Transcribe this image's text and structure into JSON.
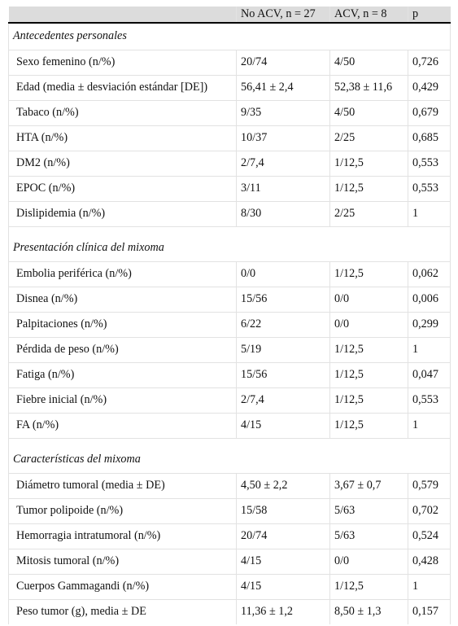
{
  "header": [
    "",
    "No ACV, n = 27",
    "ACV, n = 8",
    "p"
  ],
  "sections": [
    {
      "title": "Antecedentes personales",
      "rows": [
        [
          "Sexo femenino (n/%)",
          "20/74",
          "4/50",
          "0,726"
        ],
        [
          "Edad (media ± desviación estándar [DE])",
          "56,41 ± 2,4",
          "52,38 ± 11,6",
          "0,429"
        ],
        [
          "Tabaco (n/%)",
          "9/35",
          "4/50",
          "0,679"
        ],
        [
          "HTA (n/%)",
          "10/37",
          "2/25",
          "0,685"
        ],
        [
          "DM2 (n/%)",
          "2/7,4",
          "1/12,5",
          "0,553"
        ],
        [
          "EPOC (n/%)",
          "3/11",
          "1/12,5",
          "0,553"
        ],
        [
          "Dislipidemia (n/%)",
          "8/30",
          "2/25",
          "1"
        ]
      ]
    },
    {
      "title": "Presentación clínica del mixoma",
      "rows": [
        [
          "Embolia periférica (n/%)",
          "0/0",
          "1/12,5",
          "0,062"
        ],
        [
          "Disnea (n/%)",
          "15/56",
          "0/0",
          "0,006"
        ],
        [
          "Palpitaciones (n/%)",
          "6/22",
          "0/0",
          "0,299"
        ],
        [
          "Pérdida de peso (n/%)",
          "5/19",
          "1/12,5",
          "1"
        ],
        [
          "Fatiga (n/%)",
          "15/56",
          "1/12,5",
          "0,047"
        ],
        [
          "Fiebre inicial (n/%)",
          "2/7,4",
          "1/12,5",
          "0,553"
        ],
        [
          "FA (n/%)",
          "4/15",
          "1/12,5",
          "1"
        ]
      ]
    },
    {
      "title": "Características del mixoma",
      "rows": [
        [
          "Diámetro tumoral (media ± DE)",
          "4,50 ± 2,2",
          "3,67 ± 0,7",
          "0,579"
        ],
        [
          "Tumor polipoide (n/%)",
          "15/58",
          "5/63",
          "0,702"
        ],
        [
          "Hemorragia intratumoral (n/%)",
          "20/74",
          "5/63",
          "0,524"
        ],
        [
          "Mitosis tumoral (n/%)",
          "4/15",
          "0/0",
          "0,428"
        ],
        [
          "Cuerpos Gammagandi (n/%)",
          "4/15",
          "1/12,5",
          "1"
        ],
        [
          "Peso tumor (g), media ± DE",
          "11,36 ± 1,2",
          "8,50 ± 1,3",
          "0,157"
        ]
      ]
    }
  ]
}
